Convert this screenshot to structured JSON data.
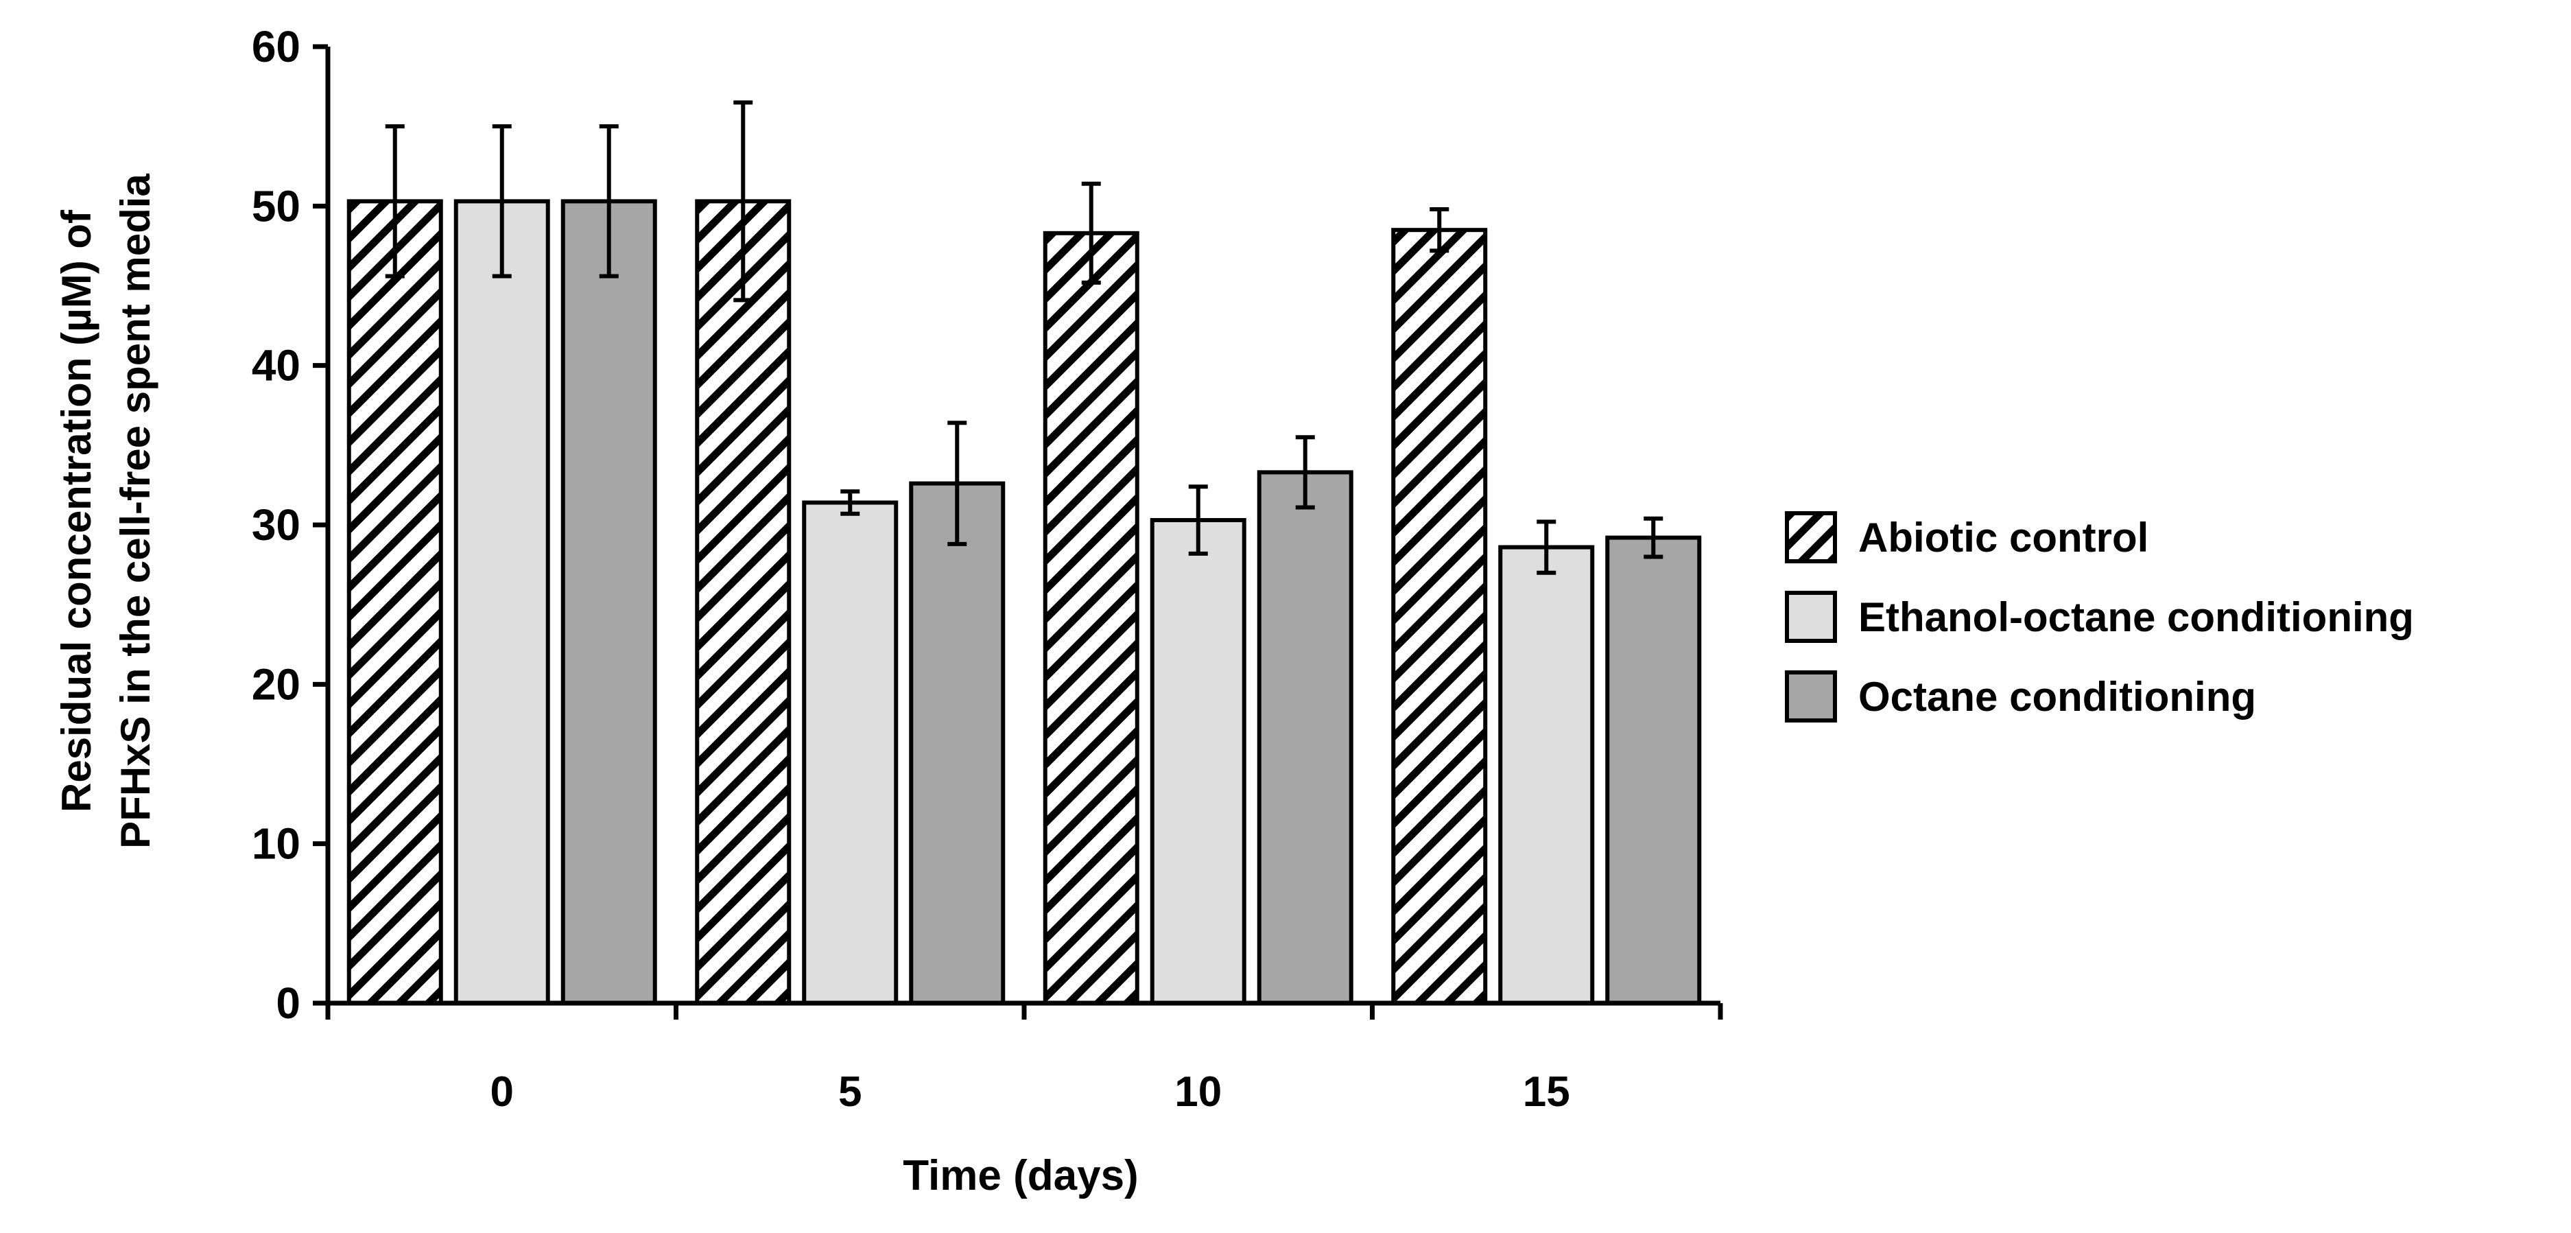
{
  "chart_data": {
    "type": "bar",
    "title": "",
    "xlabel": "Time (days)",
    "ylabel_line1": "Residual concentration (µM) of",
    "ylabel_line2": "PFHxS in the cell-free spent media",
    "categories": [
      "0",
      "5",
      "10",
      "15"
    ],
    "ylim": [
      0,
      60
    ],
    "yticks": [
      "0",
      "10",
      "20",
      "30",
      "40",
      "50",
      "60"
    ],
    "grid": false,
    "legend_position": "right",
    "series": [
      {
        "name": "Abiotic control",
        "style": "hatched",
        "fill": "#ffffff",
        "values": [
          50.3,
          50.3,
          48.3,
          48.5
        ],
        "errors": [
          4.7,
          6.2,
          3.1,
          1.3
        ]
      },
      {
        "name": "Ethanol-octane conditioning",
        "style": "solid",
        "fill": "#dedede",
        "values": [
          50.3,
          31.4,
          30.3,
          28.6
        ],
        "errors": [
          4.7,
          0.7,
          2.1,
          1.6
        ]
      },
      {
        "name": "Octane conditioning",
        "style": "solid",
        "fill": "#a6a6a6",
        "values": [
          50.3,
          32.6,
          33.3,
          29.2
        ],
        "errors": [
          4.7,
          3.8,
          2.2,
          1.2
        ]
      }
    ]
  }
}
